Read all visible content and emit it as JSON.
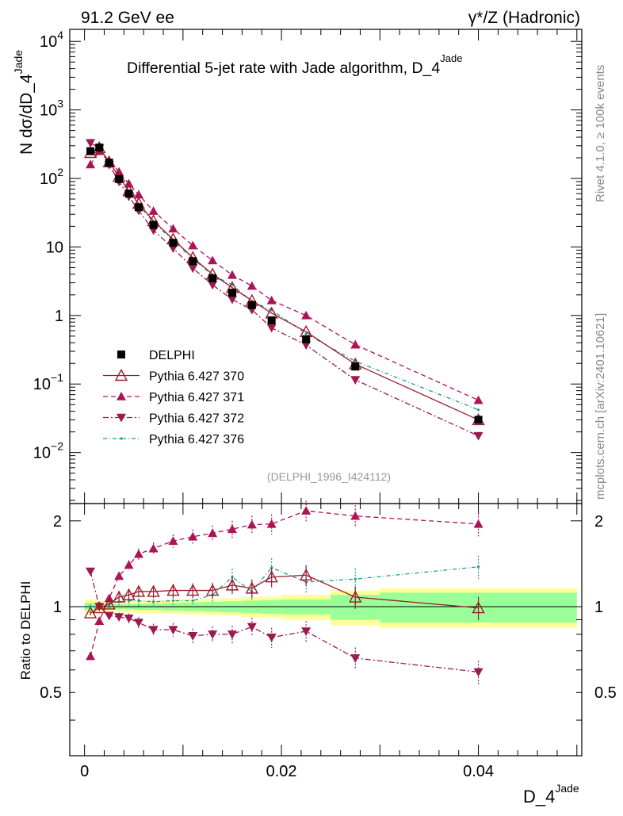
{
  "header": {
    "energy_label": "91.2 GeV ee",
    "process_label": "γ*/Z (Hadronic)",
    "title": "Differential 5-jet rate with Jade algorithm, D_4",
    "title_sup": "Jade",
    "side_label_top": "Rivet 4.1.0, ≥ 100k events",
    "side_label_bottom": "mcplots.cern.ch [arXiv:2401.10621]",
    "analysis_id": "(DELPHI_1996_I424112)"
  },
  "axes": {
    "main_ylabel_prefix": "N  dσ/dD_4",
    "main_ylabel_sup": "Jade",
    "ratio_ylabel": "Ratio to DELPHI",
    "xlabel": "D_4",
    "xlabel_sup": "Jade",
    "main_yticks": [
      {
        "value": 0.01,
        "base": "10",
        "exp": "−2"
      },
      {
        "value": 0.1,
        "base": "10",
        "exp": "−1"
      },
      {
        "value": 1,
        "base": "1",
        "exp": ""
      },
      {
        "value": 10,
        "base": "10",
        "exp": ""
      },
      {
        "value": 100,
        "base": "10",
        "exp": "2"
      },
      {
        "value": 1000,
        "base": "10",
        "exp": "3"
      },
      {
        "value": 10000,
        "base": "10",
        "exp": "4"
      }
    ],
    "ratio_yticks": [
      {
        "value": 0.5,
        "label": "0.5"
      },
      {
        "value": 1,
        "label": "1"
      },
      {
        "value": 2,
        "label": "2"
      }
    ],
    "xticks": [
      {
        "value": 0,
        "label": "0"
      },
      {
        "value": 0.02,
        "label": "0.02"
      },
      {
        "value": 0.04,
        "label": "0.04"
      }
    ]
  },
  "legend": [
    {
      "key": "data",
      "label": "DELPHI"
    },
    {
      "key": "p370",
      "label": "Pythia 6.427 370"
    },
    {
      "key": "p371",
      "label": "Pythia 6.427 371"
    },
    {
      "key": "p372",
      "label": "Pythia 6.427 372"
    },
    {
      "key": "p376",
      "label": "Pythia 6.427 376"
    }
  ],
  "colors": {
    "data": "#000000",
    "p370": "#9b1c2e",
    "p371": "#ad1457",
    "p372": "#9c1a50",
    "p376": "#1a9e8a",
    "band_inner": "#99ff99",
    "band_outer": "#ffff99"
  },
  "chart_data": {
    "type": "scatter",
    "xlim": [
      -0.0015,
      0.0505
    ],
    "main_ylim": [
      0.0018,
      15000
    ],
    "ratio_ylim": [
      0.3,
      2.3
    ],
    "x": [
      0.0006,
      0.0015,
      0.0025,
      0.0035,
      0.0045,
      0.0055,
      0.007,
      0.009,
      0.011,
      0.013,
      0.015,
      0.017,
      0.019,
      0.0225,
      0.0275,
      0.04
    ],
    "series": [
      {
        "name": "DELPHI",
        "key": "data",
        "values": [
          250,
          282,
          170,
          98,
          60,
          38,
          21,
          11.5,
          6.2,
          3.5,
          2.15,
          1.42,
          0.85,
          0.45,
          0.18,
          0.03
        ]
      },
      {
        "name": "Pythia 6.427 370",
        "key": "p370",
        "values": [
          238,
          280,
          174,
          106,
          66,
          43,
          24,
          13,
          7,
          4,
          2.55,
          1.65,
          1.08,
          0.58,
          0.195,
          0.03
        ],
        "ratio": [
          0.95,
          0.99,
          1.02,
          1.08,
          1.1,
          1.13,
          1.13,
          1.14,
          1.14,
          1.14,
          1.19,
          1.16,
          1.27,
          1.29,
          1.08,
          0.99
        ]
      },
      {
        "name": "Pythia 6.427 371",
        "key": "p371",
        "values": [
          160,
          250,
          182,
          125,
          84,
          58,
          33.5,
          18.5,
          10.5,
          6.35,
          3.9,
          2.7,
          1.66,
          1.0,
          0.375,
          0.058
        ],
        "ratio": [
          0.67,
          0.89,
          1.07,
          1.28,
          1.4,
          1.53,
          1.6,
          1.7,
          1.76,
          1.81,
          1.87,
          1.94,
          1.95,
          2.17,
          2.08,
          1.95
        ]
      },
      {
        "name": "Pythia 6.427 372",
        "key": "p372",
        "values": [
          330,
          275,
          158,
          90,
          54.5,
          34,
          17.5,
          9.6,
          4.9,
          2.8,
          1.72,
          1.21,
          0.66,
          0.37,
          0.115,
          0.0175
        ],
        "ratio": [
          1.33,
          1.0,
          0.93,
          0.92,
          0.91,
          0.88,
          0.83,
          0.83,
          0.79,
          0.8,
          0.8,
          0.85,
          0.78,
          0.82,
          0.66,
          0.59
        ]
      },
      {
        "name": "Pythia 6.427 376",
        "key": "p376",
        "values": [
          255,
          285,
          176,
          104,
          64.5,
          40.5,
          23,
          12.3,
          6.7,
          3.9,
          2.8,
          1.6,
          1.2,
          0.54,
          0.215,
          0.042
        ],
        "ratio": [
          1.0,
          1.01,
          1.02,
          1.04,
          1.05,
          1.05,
          1.04,
          1.05,
          1.05,
          1.1,
          1.27,
          1.13,
          1.37,
          1.22,
          1.25,
          1.38
        ]
      }
    ],
    "uncertainty_band": {
      "edges": [
        0.0,
        0.001,
        0.002,
        0.003,
        0.004,
        0.005,
        0.006,
        0.008,
        0.01,
        0.012,
        0.014,
        0.016,
        0.018,
        0.02,
        0.025,
        0.03,
        0.05
      ],
      "inner": [
        0.03,
        0.025,
        0.02,
        0.02,
        0.02,
        0.025,
        0.025,
        0.03,
        0.035,
        0.04,
        0.045,
        0.05,
        0.055,
        0.06,
        0.1,
        0.12
      ],
      "outer": [
        0.06,
        0.05,
        0.04,
        0.04,
        0.045,
        0.05,
        0.05,
        0.055,
        0.06,
        0.065,
        0.07,
        0.08,
        0.085,
        0.1,
        0.14,
        0.16
      ]
    }
  }
}
